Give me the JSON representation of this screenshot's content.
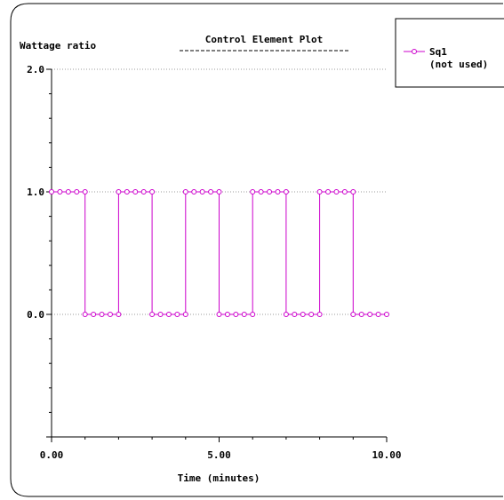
{
  "chart_data": {
    "type": "line",
    "title": "Control Element Plot",
    "ylabel": "Wattage ratio",
    "xlabel": "Time (minutes)",
    "xlim": [
      0,
      10
    ],
    "ylim": [
      -1,
      2
    ],
    "x_ticks": [
      {
        "value": 0,
        "label": "0.00"
      },
      {
        "value": 5,
        "label": "5.00"
      },
      {
        "value": 10,
        "label": "10.00"
      }
    ],
    "y_ticks": [
      {
        "value": 2,
        "label": "2.0"
      },
      {
        "value": 1,
        "label": "1.0"
      },
      {
        "value": 0,
        "label": "0.0"
      }
    ],
    "grid": "horizontal dotted at labeled y ticks",
    "legend_position": "top-right",
    "series": [
      {
        "name": "Sq1",
        "name_note": "(not used)",
        "color": "#cc00cc",
        "step": true,
        "x": [
          0,
          0.25,
          0.5,
          0.75,
          1.0,
          1.0,
          1.25,
          1.5,
          1.75,
          2.0,
          2.0,
          2.25,
          2.5,
          2.75,
          3.0,
          3.0,
          3.25,
          3.5,
          3.75,
          4.0,
          4.0,
          4.25,
          4.5,
          4.75,
          5.0,
          5.0,
          5.25,
          5.5,
          5.75,
          6.0,
          6.0,
          6.25,
          6.5,
          6.75,
          7.0,
          7.0,
          7.25,
          7.5,
          7.75,
          8.0,
          8.0,
          8.25,
          8.5,
          8.75,
          9.0,
          9.0,
          9.25,
          9.5,
          9.75,
          10.0
        ],
        "y": [
          1,
          1,
          1,
          1,
          1,
          0,
          0,
          0,
          0,
          0,
          1,
          1,
          1,
          1,
          1,
          0,
          0,
          0,
          0,
          0,
          1,
          1,
          1,
          1,
          1,
          0,
          0,
          0,
          0,
          0,
          1,
          1,
          1,
          1,
          1,
          0,
          0,
          0,
          0,
          0,
          1,
          1,
          1,
          1,
          1,
          0,
          0,
          0,
          0,
          0
        ]
      }
    ]
  }
}
